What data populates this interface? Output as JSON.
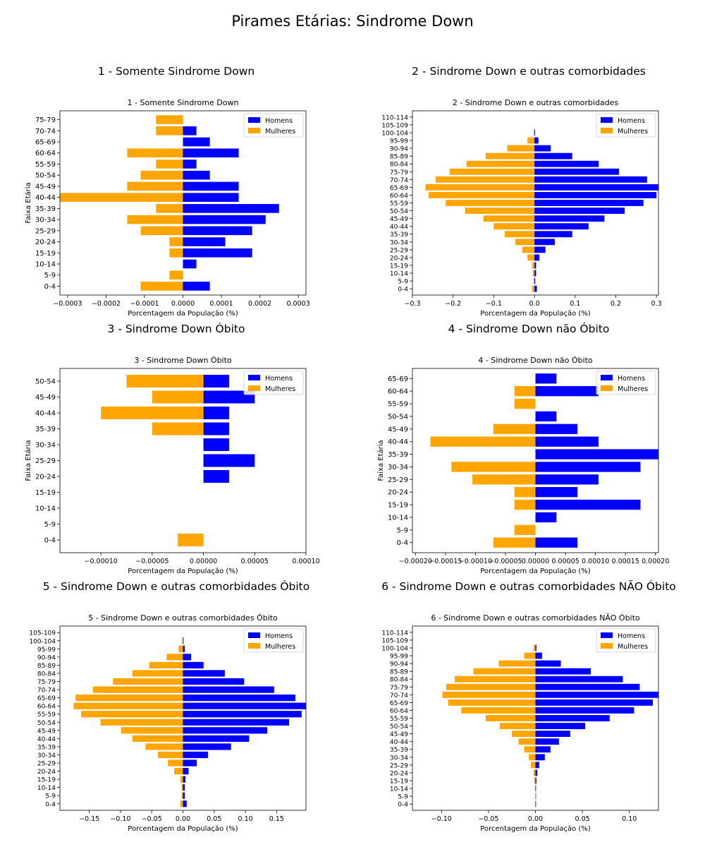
{
  "page": {
    "title": "Pirames Etárias: Sindrome Down"
  },
  "colors": {
    "men": "#0000ff",
    "women": "#ffa500"
  },
  "chart_data": [
    {
      "type": "bar",
      "orientation": "horizontal",
      "panel_title": "1 - Somente Sindrome Down",
      "title": "1 - Somente Sindrome Down",
      "xlabel": "Porcentagem da População (%)",
      "ylabel": "Faixa Etária",
      "xlim": [
        -0.00032,
        0.00032
      ],
      "xticks": [
        -0.0003,
        -0.0002,
        -0.0001,
        0.0,
        0.0001,
        0.0002,
        0.0003
      ],
      "xtick_labels": [
        "−0.0003",
        "−0.0002",
        "−0.0001",
        "0.0000",
        "0.0001",
        "0.0002",
        "0.0003"
      ],
      "categories": [
        "0-4",
        "5-9",
        "10-14",
        "15-19",
        "20-24",
        "25-29",
        "30-34",
        "35-39",
        "40-44",
        "45-49",
        "50-54",
        "55-59",
        "60-64",
        "65-69",
        "70-74",
        "75-79"
      ],
      "series": [
        {
          "name": "Homens",
          "values": [
            7e-05,
            0,
            3.5e-05,
            0.00018,
            0.00011,
            0.00018,
            0.000215,
            0.00025,
            0.000145,
            0.000145,
            7e-05,
            3.5e-05,
            0.000145,
            7e-05,
            3.5e-05,
            0
          ]
        },
        {
          "name": "Mulheres",
          "values": [
            -0.00011,
            -3.5e-05,
            0,
            -3.5e-05,
            -3.5e-05,
            -0.00011,
            -0.000145,
            -7e-05,
            -0.00032,
            -0.000145,
            -0.00011,
            -7e-05,
            -0.000145,
            0,
            -7e-05,
            -7e-05
          ]
        }
      ],
      "legend": "top-right"
    },
    {
      "type": "bar",
      "orientation": "horizontal",
      "panel_title": "2 - Sindrome Down e outras comorbidades",
      "title": "2 - Sindrome Down e outras comorbidades",
      "xlabel": "Porcentagem da População (%)",
      "ylabel": "",
      "xlim": [
        -0.3,
        0.305
      ],
      "xticks": [
        -0.3,
        -0.2,
        -0.1,
        0.0,
        0.1,
        0.2,
        0.3
      ],
      "xtick_labels": [
        "−0.3",
        "−0.2",
        "−0.1",
        "0.0",
        "0.1",
        "0.2",
        "0.3"
      ],
      "categories": [
        "0-4",
        "5-9",
        "10-14",
        "15-19",
        "20-24",
        "25-29",
        "30-34",
        "35-39",
        "40-44",
        "45-49",
        "50-54",
        "55-59",
        "60-64",
        "65-69",
        "70-74",
        "75-79",
        "80-84",
        "85-89",
        "90-94",
        "95-99",
        "100-104",
        "105-109",
        "110-114"
      ],
      "series": [
        {
          "name": "Homens",
          "values": [
            0.006,
            0.002,
            0.004,
            0.004,
            0.012,
            0.027,
            0.05,
            0.093,
            0.133,
            0.172,
            0.222,
            0.268,
            0.3,
            0.305,
            0.277,
            0.208,
            0.158,
            0.093,
            0.04,
            0.01,
            0.001,
            0,
            0
          ]
        },
        {
          "name": "Mulheres",
          "values": [
            -0.006,
            -0.002,
            -0.004,
            -0.006,
            -0.017,
            -0.03,
            -0.047,
            -0.073,
            -0.1,
            -0.125,
            -0.17,
            -0.218,
            -0.26,
            -0.268,
            -0.243,
            -0.208,
            -0.167,
            -0.12,
            -0.067,
            -0.017,
            -0.002,
            0,
            0
          ]
        }
      ],
      "legend": "top-right"
    },
    {
      "type": "bar",
      "orientation": "horizontal",
      "panel_title": "3 - Sindrome Down Óbito",
      "title": "3 - Sindrome Down Óbito",
      "xlabel": "Porcentagem da População (%)",
      "ylabel": "Faixa Etária",
      "xlim": [
        -0.00014,
        0.0001
      ],
      "xticks": [
        -0.0001,
        -5e-05,
        0.0,
        5e-05,
        0.0001
      ],
      "xtick_labels": [
        "−0.00010",
        "−0.00005",
        "0.00000",
        "0.00005",
        "0.00010"
      ],
      "categories": [
        "0-4",
        "5-9",
        "10-14",
        "15-19",
        "20-24",
        "25-29",
        "30-34",
        "35-39",
        "40-44",
        "45-49",
        "50-54"
      ],
      "series": [
        {
          "name": "Homens",
          "values": [
            0,
            0,
            0,
            0,
            2.5e-05,
            5e-05,
            2.5e-05,
            2.5e-05,
            2.5e-05,
            5e-05,
            2.5e-05
          ]
        },
        {
          "name": "Mulheres",
          "values": [
            -2.5e-05,
            0,
            0,
            0,
            0,
            0,
            0,
            -5e-05,
            -0.0001,
            -5e-05,
            -7.5e-05
          ]
        }
      ],
      "legend": "top-right"
    },
    {
      "type": "bar",
      "orientation": "horizontal",
      "panel_title": "4 - Sindrome Down não Óbito",
      "title": "4 - Sindrome Down não Óbito",
      "xlabel": "Porcentagem da População (%)",
      "ylabel": "Faixa Etária",
      "xlim": [
        -0.000205,
        0.000205
      ],
      "xticks": [
        -0.0002,
        -0.00015,
        -0.0001,
        -5e-05,
        0.0,
        5e-05,
        0.0001,
        0.00015,
        0.0002
      ],
      "xtick_labels": [
        "−0.00020",
        "−0.00015",
        "−0.00010",
        "−0.00005",
        "0.00000",
        "0.00005",
        "0.00010",
        "0.00015",
        "0.00020"
      ],
      "categories": [
        "0-4",
        "5-9",
        "10-14",
        "15-19",
        "20-24",
        "25-29",
        "30-34",
        "35-39",
        "40-44",
        "45-49",
        "50-54",
        "55-59",
        "60-64",
        "65-69"
      ],
      "series": [
        {
          "name": "Homens",
          "values": [
            7e-05,
            0,
            3.5e-05,
            0.000175,
            7e-05,
            0.000105,
            0.000175,
            0.00021,
            0.000105,
            7e-05,
            3.5e-05,
            0,
            0.000105,
            3.5e-05
          ]
        },
        {
          "name": "Mulheres",
          "values": [
            -7e-05,
            -3.5e-05,
            0,
            -3.5e-05,
            -3.5e-05,
            -0.000105,
            -0.00014,
            0,
            -0.000175,
            -7e-05,
            0,
            -3.5e-05,
            -3.5e-05,
            0
          ]
        }
      ],
      "legend": "top-right"
    },
    {
      "type": "bar",
      "orientation": "horizontal",
      "panel_title": "5 - Sindrome Down e outras comorbidades Óbito",
      "title": "5 - Sindrome Down e outras comorbidades Óbito",
      "xlabel": "Porcentagem da População (%)",
      "ylabel": "",
      "xlim": [
        -0.197,
        0.197
      ],
      "xticks": [
        -0.15,
        -0.1,
        -0.05,
        0.0,
        0.05,
        0.1,
        0.15
      ],
      "xtick_labels": [
        "−0.15",
        "−0.10",
        "−0.05",
        "0.00",
        "0.05",
        "0.10",
        "0.15"
      ],
      "categories": [
        "0-4",
        "5-9",
        "10-14",
        "15-19",
        "20-24",
        "25-29",
        "30-34",
        "35-39",
        "40-44",
        "45-49",
        "50-54",
        "55-59",
        "60-64",
        "65-69",
        "70-74",
        "75-79",
        "80-84",
        "85-89",
        "90-94",
        "95-99",
        "100-104",
        "105-109"
      ],
      "series": [
        {
          "name": "Homens",
          "values": [
            0.006,
            0.003,
            0.003,
            0.004,
            0.009,
            0.022,
            0.04,
            0.077,
            0.106,
            0.135,
            0.17,
            0.19,
            0.197,
            0.18,
            0.146,
            0.098,
            0.067,
            0.033,
            0.013,
            0.003,
            0.001,
            0
          ]
        },
        {
          "name": "Mulheres",
          "values": [
            -0.004,
            -0.002,
            -0.002,
            -0.004,
            -0.014,
            -0.024,
            -0.04,
            -0.06,
            -0.081,
            -0.099,
            -0.132,
            -0.163,
            -0.175,
            -0.172,
            -0.144,
            -0.112,
            -0.081,
            -0.054,
            -0.026,
            -0.007,
            -0.001,
            0
          ]
        }
      ],
      "legend": "top-right"
    },
    {
      "type": "bar",
      "orientation": "horizontal",
      "panel_title": "6 - Sindrome Down e outras comorbidades NÃO Óbito",
      "title": "6 - Sindrome Down e outras comorbidades NÃO Óbito",
      "xlabel": "Porcentagem da População (%)",
      "ylabel": "",
      "xlim": [
        -0.131,
        0.131
      ],
      "xticks": [
        -0.1,
        -0.05,
        0.0,
        0.05,
        0.1
      ],
      "xtick_labels": [
        "−0.10",
        "−0.05",
        "0.00",
        "0.05",
        "0.10"
      ],
      "categories": [
        "0-4",
        "5-9",
        "10-14",
        "15-19",
        "20-24",
        "25-29",
        "30-34",
        "35-39",
        "40-44",
        "45-49",
        "50-54",
        "55-59",
        "60-64",
        "65-69",
        "70-74",
        "75-79",
        "80-84",
        "85-89",
        "90-94",
        "95-99",
        "100-104",
        "105-109",
        "110-114"
      ],
      "series": [
        {
          "name": "Homens",
          "values": [
            0.0005,
            0.0003,
            0.0005,
            0.001,
            0.002,
            0.004,
            0.01,
            0.016,
            0.025,
            0.037,
            0.053,
            0.079,
            0.105,
            0.125,
            0.131,
            0.111,
            0.093,
            0.059,
            0.027,
            0.007,
            0.001,
            0,
            0
          ]
        },
        {
          "name": "Mulheres",
          "values": [
            -0.0005,
            -0.0003,
            -0.0005,
            -0.001,
            -0.002,
            -0.005,
            -0.007,
            -0.012,
            -0.018,
            -0.025,
            -0.038,
            -0.053,
            -0.079,
            -0.093,
            -0.099,
            -0.095,
            -0.086,
            -0.066,
            -0.039,
            -0.012,
            -0.002,
            0,
            0
          ]
        }
      ],
      "legend": "top-right"
    }
  ]
}
